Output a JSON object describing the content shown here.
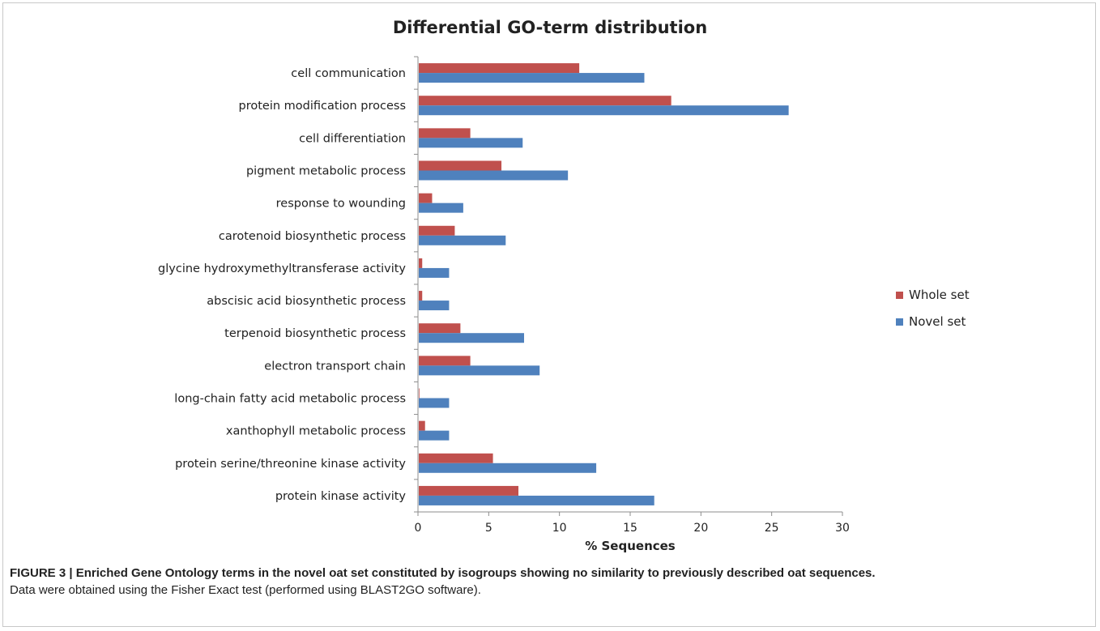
{
  "chart_data": {
    "type": "bar",
    "orientation": "horizontal",
    "title": "Differential GO-term distribution",
    "xlabel": "% Sequences",
    "ylabel": "",
    "xlim": [
      0,
      30
    ],
    "xticks": [
      0,
      5,
      10,
      15,
      20,
      25,
      30
    ],
    "grid": false,
    "legend_position": "right",
    "categories": [
      "cell communication",
      "protein modification process",
      "cell differentiation",
      "pigment metabolic process",
      "response to wounding",
      "carotenoid biosynthetic process",
      "glycine hydroxymethyltransferase activity",
      "abscisic acid biosynthetic process",
      "terpenoid biosynthetic process",
      "electron transport chain",
      "long-chain fatty acid metabolic process",
      "xanthophyll metabolic process",
      "protein serine/threonine kinase activity",
      "protein kinase activity"
    ],
    "series": [
      {
        "name": "Whole set",
        "color": "#c0504d",
        "values": [
          11.4,
          17.9,
          3.7,
          5.9,
          1.0,
          2.6,
          0.3,
          0.3,
          3.0,
          3.7,
          0.1,
          0.5,
          5.3,
          7.1
        ]
      },
      {
        "name": "Novel set",
        "color": "#4f81bd",
        "values": [
          16.0,
          26.2,
          7.4,
          10.6,
          3.2,
          6.2,
          2.2,
          2.2,
          7.5,
          8.6,
          2.2,
          2.2,
          12.6,
          16.7
        ]
      }
    ]
  },
  "caption": {
    "bold": "FIGURE 3 | Enriched Gene Ontology terms in the novel oat set constituted by isogroups showing no similarity to previously described oat sequences.",
    "normal": "Data were obtained using the Fisher Exact test (performed using BLAST2GO software)."
  }
}
